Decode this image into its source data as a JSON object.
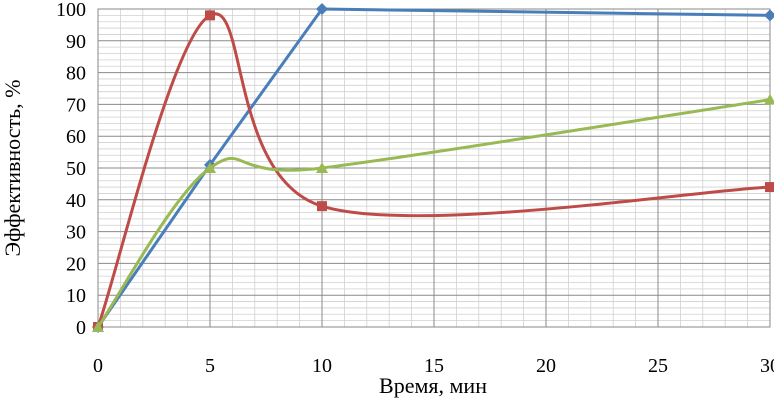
{
  "chart_data": {
    "type": "line",
    "title": "",
    "xlabel": "Время, мин",
    "ylabel": "Эффективность, %",
    "xlim": [
      0,
      30
    ],
    "ylim": [
      0,
      100
    ],
    "x_ticks": [
      "0",
      "5",
      "10",
      "15",
      "20",
      "25",
      "30"
    ],
    "y_ticks": [
      "0",
      "10",
      "20",
      "30",
      "40",
      "50",
      "60",
      "70",
      "80",
      "90",
      "100"
    ],
    "grid": true,
    "legend": "none",
    "series": [
      {
        "color": "#4a7ebb",
        "marker": "diamond",
        "smooth": false,
        "x": [
          0,
          5,
          10,
          30
        ],
        "y": [
          0,
          51,
          100,
          98
        ]
      },
      {
        "color": "#be4b48",
        "marker": "square",
        "smooth": true,
        "x": [
          0,
          5,
          10,
          30
        ],
        "y": [
          0,
          98,
          38,
          44
        ]
      },
      {
        "color": "#98b954",
        "marker": "triangle",
        "smooth": true,
        "x": [
          0,
          5,
          10,
          30
        ],
        "y": [
          0,
          50,
          50,
          71.5
        ]
      }
    ]
  }
}
